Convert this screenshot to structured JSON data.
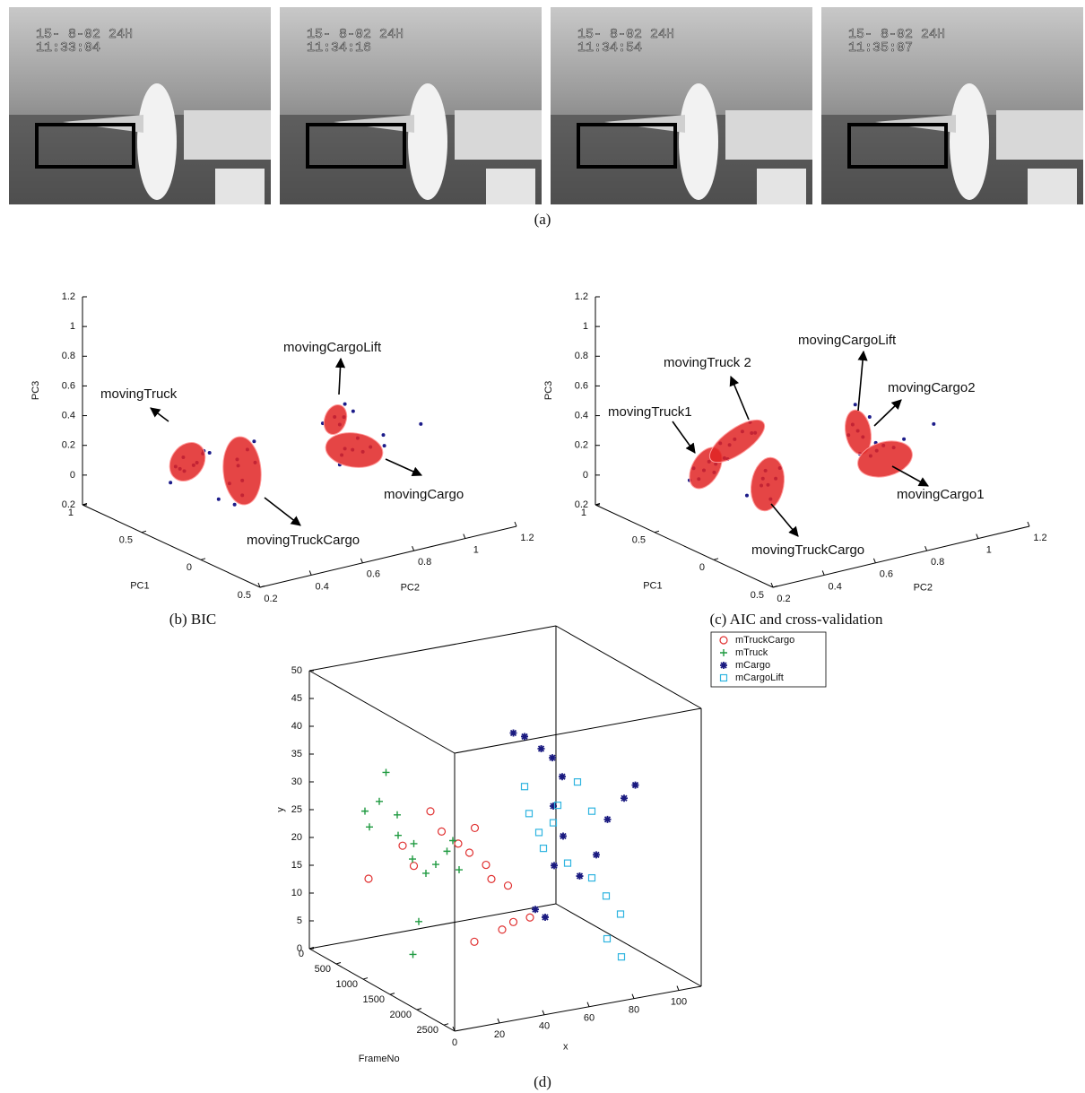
{
  "photos": [
    {
      "date": "15- 8-02  24H",
      "time": "11:33:04"
    },
    {
      "date": "15- 8-02  24H",
      "time": "11:34:16"
    },
    {
      "date": "15- 8-02  24H",
      "time": "11:34:54"
    },
    {
      "date": "15- 8-02  24H",
      "time": "11:35:07"
    }
  ],
  "photos_caption": "(a)",
  "chart_data": [
    {
      "type": "scatter3d",
      "caption": "(b) BIC",
      "xlabel": "PC1",
      "ylabel": "PC2",
      "zlabel": "PC3",
      "xlim": [
        -0.5,
        1
      ],
      "ylim": [
        0.2,
        1.2
      ],
      "zlim": [
        -0.2,
        1.2
      ],
      "xticks": [
        1,
        0.5,
        0,
        {
          "value": -0.5,
          "label": "0.5"
        }
      ],
      "yticks": [
        0.2,
        0.4,
        0.6,
        0.8,
        1,
        1.2
      ],
      "zticks": [
        {
          "value": -0.2,
          "label": "0.2"
        },
        0,
        0.2,
        0.4,
        0.6,
        0.8,
        1,
        1.2
      ],
      "annotations": [
        "movingTruck",
        "movingCargoLift",
        "movingCargo",
        "movingTruckCargo"
      ],
      "series": [
        {
          "color": "#1c1c8a",
          "marker": ".",
          "points": [
            [
              0.3,
              0.27,
              0.35
            ],
            [
              0.3,
              0.31,
              0.28
            ],
            [
              0.25,
              0.3,
              0.32
            ],
            [
              0.35,
              0.28,
              0.25
            ],
            [
              0.3,
              0.24,
              0.3
            ],
            [
              0.2,
              0.3,
              0.4
            ],
            [
              0.4,
              0.32,
              0.2
            ],
            [
              0.3,
              0.35,
              0.36
            ],
            [
              0.3,
              0.22,
              0.2
            ],
            [
              0.1,
              0.28,
              0.45
            ],
            [
              0.3,
              0.5,
              0.1
            ],
            [
              0.3,
              0.48,
              0.25
            ],
            [
              0.3,
              0.52,
              0.3
            ],
            [
              0.3,
              0.5,
              0.0
            ],
            [
              0.3,
              0.47,
              -0.05
            ],
            [
              0.2,
              0.5,
              0.4
            ],
            [
              0.4,
              0.53,
              0.15
            ],
            [
              0.3,
              0.55,
              0.2
            ],
            [
              0.3,
              0.45,
              0.1
            ],
            [
              0.5,
              0.5,
              -0.1
            ],
            [
              0.3,
              0.86,
              0.38
            ],
            [
              0.3,
              0.88,
              0.32
            ],
            [
              0.2,
              0.85,
              0.42
            ],
            [
              0.3,
              0.9,
              0.45
            ],
            [
              0.1,
              0.84,
              0.5
            ],
            [
              0.4,
              0.86,
              0.3
            ],
            [
              0.3,
              0.93,
              0.13
            ],
            [
              0.3,
              0.97,
              0.1
            ],
            [
              0.3,
              0.9,
              0.15
            ],
            [
              0.3,
              1.0,
              0.12
            ],
            [
              0.3,
              1.05,
              0.18
            ],
            [
              0.4,
              1.1,
              0.05
            ],
            [
              0.3,
              0.95,
              0.2
            ],
            [
              0.2,
              1.15,
              0.25
            ],
            [
              0.5,
              0.98,
              0.0
            ],
            [
              0.3,
              0.88,
              0.05
            ]
          ]
        }
      ]
    },
    {
      "type": "scatter3d",
      "caption": "(c) AIC and cross-validation",
      "xlabel": "PC1",
      "ylabel": "PC2",
      "zlabel": "PC3",
      "xlim": [
        -0.5,
        1
      ],
      "ylim": [
        0.2,
        1.2
      ],
      "zlim": [
        -0.2,
        1.2
      ],
      "xticks": [
        1,
        0.5,
        0,
        {
          "value": -0.5,
          "label": "0.5"
        }
      ],
      "yticks": [
        0.2,
        0.4,
        0.6,
        0.8,
        1,
        1.2
      ],
      "zticks": [
        {
          "value": -0.2,
          "label": "0.2"
        },
        0,
        0.2,
        0.4,
        0.6,
        0.8,
        1,
        1.2
      ],
      "annotations": [
        "movingTruck1",
        "movingTruck 2",
        "movingCargoLift",
        "movingCargo2",
        "movingCargo1",
        "movingTruckCargo"
      ],
      "series": [
        {
          "color": "#1c1c8a",
          "marker": ".",
          "points": [
            [
              0.3,
              0.3,
              0.25
            ],
            [
              0.3,
              0.28,
              0.2
            ],
            [
              0.3,
              0.32,
              0.3
            ],
            [
              0.2,
              0.3,
              0.33
            ],
            [
              0.4,
              0.29,
              0.15
            ],
            [
              0.3,
              0.26,
              0.28
            ],
            [
              0.1,
              0.3,
              0.4
            ],
            [
              0.3,
              0.34,
              0.22
            ],
            [
              0.3,
              0.42,
              0.41
            ],
            [
              0.3,
              0.45,
              0.45
            ],
            [
              0.3,
              0.4,
              0.38
            ],
            [
              0.3,
              0.48,
              0.5
            ],
            [
              0.2,
              0.44,
              0.48
            ],
            [
              0.4,
              0.41,
              0.35
            ],
            [
              0.3,
              0.5,
              0.42
            ],
            [
              0.3,
              0.38,
              0.3
            ],
            [
              0.3,
              0.55,
              0.05
            ],
            [
              0.3,
              0.54,
              0.15
            ],
            [
              0.3,
              0.56,
              -0.05
            ],
            [
              0.3,
              0.53,
              0.1
            ],
            [
              0.4,
              0.57,
              0.0
            ],
            [
              0.2,
              0.55,
              0.2
            ],
            [
              0.5,
              0.56,
              -0.1
            ],
            [
              0.3,
              0.58,
              0.08
            ],
            [
              0.3,
              0.9,
              0.27
            ],
            [
              0.3,
              0.88,
              0.32
            ],
            [
              0.3,
              0.92,
              0.22
            ],
            [
              0.2,
              0.9,
              0.4
            ],
            [
              0.3,
              0.89,
              0.45
            ],
            [
              0.4,
              0.91,
              0.2
            ],
            [
              0.3,
              1.0,
              0.13
            ],
            [
              0.3,
              1.04,
              0.1
            ],
            [
              0.3,
              0.97,
              0.16
            ],
            [
              0.3,
              1.08,
              0.14
            ],
            [
              0.4,
              1.02,
              0.05
            ],
            [
              0.2,
              1.15,
              0.25
            ],
            [
              0.3,
              0.95,
              0.08
            ],
            [
              0.5,
              1.0,
              0.0
            ]
          ]
        }
      ]
    },
    {
      "type": "scatter3d",
      "caption": "(d)",
      "xlabel": "FrameNo",
      "ylabel": "x",
      "zlabel": "y",
      "xlim": [
        0,
        2700
      ],
      "ylim": [
        0,
        110
      ],
      "zlim": [
        0,
        50
      ],
      "xticks": [
        0,
        500,
        1000,
        1500,
        2000,
        2500
      ],
      "yticks": [
        0,
        20,
        40,
        60,
        80,
        100
      ],
      "zticks": [
        0,
        5,
        10,
        15,
        20,
        25,
        30,
        35,
        40,
        45,
        50
      ],
      "box": true,
      "series": [
        {
          "name": "mTruckCargo",
          "color": "#e03030",
          "marker": "o",
          "points": [
            [
              1000,
              30,
              28
            ],
            [
              1000,
              35,
              24
            ],
            [
              1100,
              40,
              22
            ],
            [
              1100,
              45,
              20
            ],
            [
              1200,
              45,
              25
            ],
            [
              1200,
              50,
              18
            ],
            [
              1300,
              50,
              16
            ],
            [
              900,
              25,
              18
            ],
            [
              900,
              20,
              22
            ],
            [
              1400,
              55,
              15
            ],
            [
              1500,
              50,
              8
            ],
            [
              1500,
              55,
              9
            ],
            [
              1600,
              60,
              10
            ],
            [
              1400,
              40,
              6
            ],
            [
              600,
              12,
              15
            ]
          ]
        },
        {
          "name": "mTruck",
          "color": "#1f9a40",
          "marker": "+",
          "points": [
            [
              800,
              15,
              35
            ],
            [
              800,
              12,
              30
            ],
            [
              800,
              20,
              27
            ],
            [
              900,
              18,
              24
            ],
            [
              900,
              25,
              22
            ],
            [
              1000,
              22,
              20
            ],
            [
              1000,
              28,
              17
            ],
            [
              1100,
              30,
              19
            ],
            [
              1100,
              35,
              21
            ],
            [
              1200,
              38,
              18
            ],
            [
              1200,
              20,
              10
            ],
            [
              1300,
              15,
              5
            ],
            [
              700,
              10,
              25
            ],
            [
              700,
              8,
              28
            ],
            [
              1000,
              40,
              22
            ]
          ]
        },
        {
          "name": "mCargo",
          "color": "#1a1a80",
          "marker": "*",
          "points": [
            [
              1500,
              55,
              43
            ],
            [
              1500,
              60,
              42
            ],
            [
              1600,
              65,
              40
            ],
            [
              1600,
              70,
              38
            ],
            [
              1700,
              72,
              35
            ],
            [
              1700,
              68,
              30
            ],
            [
              1800,
              70,
              25
            ],
            [
              1800,
              66,
              20
            ],
            [
              1900,
              75,
              18
            ],
            [
              2000,
              80,
              22
            ],
            [
              2000,
              85,
              28
            ],
            [
              2100,
              90,
              32
            ],
            [
              2100,
              95,
              34
            ],
            [
              1700,
              60,
              12
            ],
            [
              1800,
              62,
              11
            ]
          ]
        },
        {
          "name": "mCargoLift",
          "color": "#2fb4e0",
          "marker": "s",
          "points": [
            [
              1500,
              60,
              33
            ],
            [
              1500,
              62,
              28
            ],
            [
              1600,
              64,
              25
            ],
            [
              1600,
              66,
              22
            ],
            [
              1700,
              68,
              27
            ],
            [
              1700,
              70,
              30
            ],
            [
              1800,
              72,
              20
            ],
            [
              2000,
              78,
              18
            ],
            [
              2100,
              82,
              15
            ],
            [
              2200,
              86,
              12
            ],
            [
              2200,
              80,
              8
            ],
            [
              2300,
              84,
              5
            ],
            [
              1900,
              74,
              35
            ],
            [
              2000,
              78,
              30
            ]
          ]
        }
      ]
    }
  ]
}
